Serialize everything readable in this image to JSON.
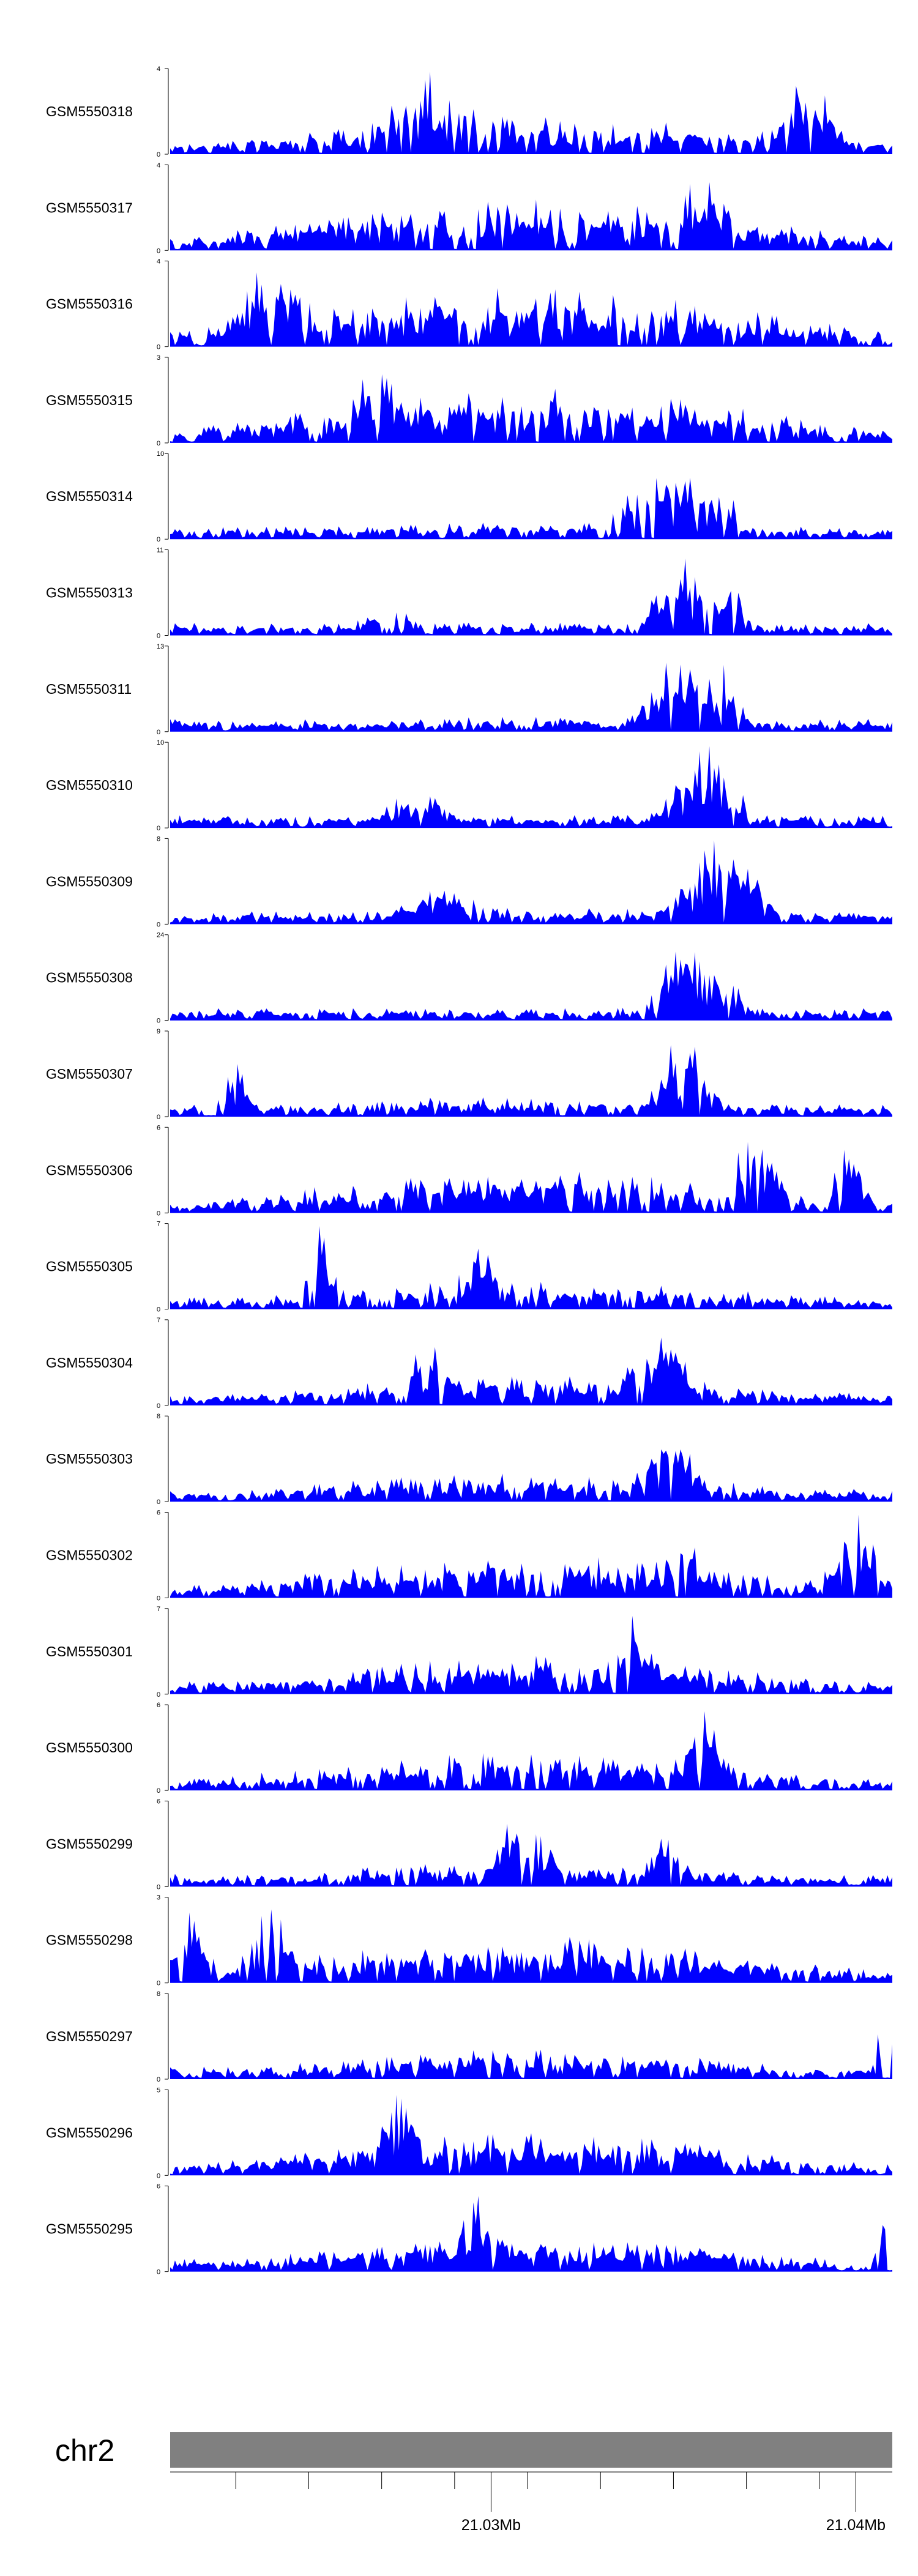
{
  "chart_data": {
    "type": "area",
    "fill_color": "#0000ff",
    "axis_color": "#000000",
    "ideogram_color": "#808080",
    "chromosome": "chr2",
    "x_range_mb": [
      21.0212,
      21.041
    ],
    "x_ticks_mb": [
      21.023,
      21.025,
      21.027,
      21.029,
      21.031,
      21.033,
      21.035,
      21.037,
      21.039
    ],
    "x_tick_labels": [
      {
        "mb": 21.03,
        "label": "21.03Mb"
      },
      {
        "mb": 21.04,
        "label": "21.04Mb"
      }
    ],
    "tracks": [
      {
        "name": "GSM5550318",
        "ymax": "4",
        "ymin": "0",
        "ymax_val": 4,
        "seed": 318,
        "peaks": [
          [
            0.36,
            1.0,
            0.06
          ],
          [
            0.88,
            0.9,
            0.04
          ],
          [
            0.5,
            0.45,
            0.3
          ]
        ]
      },
      {
        "name": "GSM5550317",
        "ymax": "4",
        "ymin": "0",
        "ymax_val": 4,
        "seed": 317,
        "peaks": [
          [
            0.74,
            1.0,
            0.03
          ],
          [
            0.5,
            0.6,
            0.3
          ]
        ]
      },
      {
        "name": "GSM5550316",
        "ymax": "4",
        "ymin": "0",
        "ymax_val": 4,
        "seed": 316,
        "peaks": [
          [
            0.14,
            0.95,
            0.05
          ],
          [
            0.5,
            0.7,
            0.3
          ]
        ]
      },
      {
        "name": "GSM5550315",
        "ymax": "3",
        "ymin": "0",
        "ymax_val": 3,
        "seed": 315,
        "peaks": [
          [
            0.29,
            1.0,
            0.04
          ],
          [
            0.5,
            0.65,
            0.3
          ]
        ]
      },
      {
        "name": "GSM5550314",
        "ymax": "10",
        "ymin": "0",
        "ymax_val": 10,
        "seed": 314,
        "peaks": [
          [
            0.69,
            1.0,
            0.05
          ],
          [
            0.75,
            0.8,
            0.03
          ],
          [
            0.5,
            0.2,
            0.3
          ]
        ]
      },
      {
        "name": "GSM5550313",
        "ymax": "11",
        "ymin": "0",
        "ymax_val": 11,
        "seed": 313,
        "peaks": [
          [
            0.72,
            1.0,
            0.04
          ],
          [
            0.77,
            0.9,
            0.02
          ],
          [
            0.3,
            0.3,
            0.05
          ],
          [
            0.5,
            0.15,
            0.3
          ]
        ]
      },
      {
        "name": "GSM5550311",
        "ymax": "13",
        "ymin": "0",
        "ymax_val": 13,
        "seed": 311,
        "peaks": [
          [
            0.71,
            1.0,
            0.04
          ],
          [
            0.77,
            0.85,
            0.02
          ],
          [
            0.5,
            0.18,
            0.3
          ]
        ]
      },
      {
        "name": "GSM5550310",
        "ymax": "10",
        "ymin": "0",
        "ymax_val": 10,
        "seed": 310,
        "peaks": [
          [
            0.74,
            1.0,
            0.04
          ],
          [
            0.34,
            0.45,
            0.04
          ],
          [
            0.5,
            0.15,
            0.3
          ]
        ]
      },
      {
        "name": "GSM5550309",
        "ymax": "8",
        "ymin": "0",
        "ymax_val": 8,
        "seed": 309,
        "peaks": [
          [
            0.76,
            1.0,
            0.05
          ],
          [
            0.37,
            0.5,
            0.05
          ],
          [
            0.5,
            0.2,
            0.3
          ]
        ]
      },
      {
        "name": "GSM5550308",
        "ymax": "24",
        "ymin": "0",
        "ymax_val": 24,
        "seed": 308,
        "peaks": [
          [
            0.71,
            1.0,
            0.03
          ],
          [
            0.76,
            0.6,
            0.03
          ],
          [
            0.5,
            0.06,
            0.3
          ]
        ]
      },
      {
        "name": "GSM5550307",
        "ymax": "9",
        "ymin": "0",
        "ymax_val": 9,
        "seed": 307,
        "peaks": [
          [
            0.71,
            1.0,
            0.03
          ],
          [
            0.09,
            0.7,
            0.02
          ],
          [
            0.5,
            0.25,
            0.3
          ]
        ]
      },
      {
        "name": "GSM5550306",
        "ymax": "6",
        "ymin": "0",
        "ymax_val": 6,
        "seed": 306,
        "peaks": [
          [
            0.81,
            1.0,
            0.03
          ],
          [
            0.94,
            0.9,
            0.02
          ],
          [
            0.5,
            0.5,
            0.3
          ]
        ]
      },
      {
        "name": "GSM5550305",
        "ymax": "7",
        "ymin": "0",
        "ymax_val": 7,
        "seed": 305,
        "peaks": [
          [
            0.21,
            1.0,
            0.02
          ],
          [
            0.43,
            0.75,
            0.03
          ],
          [
            0.5,
            0.35,
            0.3
          ]
        ]
      },
      {
        "name": "GSM5550304",
        "ymax": "7",
        "ymin": "0",
        "ymax_val": 7,
        "seed": 304,
        "peaks": [
          [
            0.68,
            1.0,
            0.04
          ],
          [
            0.36,
            0.8,
            0.03
          ],
          [
            0.5,
            0.35,
            0.3
          ]
        ]
      },
      {
        "name": "GSM5550303",
        "ymax": "8",
        "ymin": "0",
        "ymax_val": 8,
        "seed": 303,
        "peaks": [
          [
            0.69,
            1.0,
            0.03
          ],
          [
            0.5,
            0.35,
            0.3
          ]
        ]
      },
      {
        "name": "GSM5550302",
        "ymax": "6",
        "ymin": "0",
        "ymax_val": 6,
        "seed": 302,
        "peaks": [
          [
            0.95,
            1.0,
            0.03
          ],
          [
            0.71,
            0.9,
            0.02
          ],
          [
            0.5,
            0.5,
            0.3
          ]
        ]
      },
      {
        "name": "GSM5550301",
        "ymax": "7",
        "ymin": "0",
        "ymax_val": 7,
        "seed": 301,
        "peaks": [
          [
            0.64,
            1.0,
            0.03
          ],
          [
            0.5,
            0.45,
            0.3
          ]
        ]
      },
      {
        "name": "GSM5550300",
        "ymax": "6",
        "ymin": "0",
        "ymax_val": 6,
        "seed": 300,
        "peaks": [
          [
            0.74,
            1.0,
            0.03
          ],
          [
            0.5,
            0.45,
            0.3
          ]
        ]
      },
      {
        "name": "GSM5550299",
        "ymax": "6",
        "ymin": "0",
        "ymax_val": 6,
        "seed": 299,
        "peaks": [
          [
            0.49,
            0.9,
            0.04
          ],
          [
            0.69,
            1.0,
            0.02
          ],
          [
            0.5,
            0.3,
            0.3
          ]
        ]
      },
      {
        "name": "GSM5550298",
        "ymax": "3",
        "ymin": "0",
        "ymax_val": 3,
        "seed": 298,
        "peaks": [
          [
            0.03,
            1.0,
            0.02
          ],
          [
            0.14,
            0.9,
            0.03
          ],
          [
            0.5,
            0.55,
            0.3
          ]
        ]
      },
      {
        "name": "GSM5550297",
        "ymax": "8",
        "ymin": "0",
        "ymax_val": 8,
        "seed": 297,
        "peaks": [
          [
            0.99,
            1.0,
            0.01
          ],
          [
            0.5,
            0.35,
            0.3
          ]
        ]
      },
      {
        "name": "GSM5550296",
        "ymax": "5",
        "ymin": "0",
        "ymax_val": 5,
        "seed": 296,
        "peaks": [
          [
            0.32,
            1.0,
            0.03
          ],
          [
            0.5,
            0.5,
            0.3
          ]
        ]
      },
      {
        "name": "GSM5550295",
        "ymax": "6",
        "ymin": "0",
        "ymax_val": 6,
        "seed": 295,
        "peaks": [
          [
            0.42,
            1.0,
            0.02
          ],
          [
            0.99,
            0.95,
            0.01
          ],
          [
            0.5,
            0.4,
            0.3
          ]
        ]
      }
    ]
  }
}
